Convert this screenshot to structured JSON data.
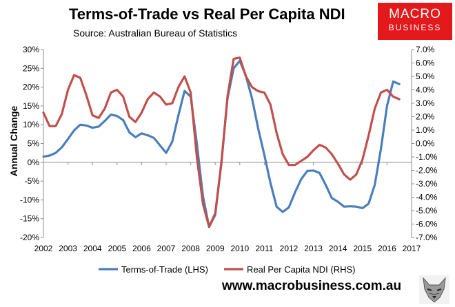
{
  "header": {
    "title": "Terms-of-Trade vs Real Per Capita NDI",
    "source": "Source: Australian Bureau of Statistics"
  },
  "logo": {
    "line1": "MACRO",
    "line2": "BUSINESS",
    "color": "#e3191c"
  },
  "footer": {
    "website": "www.macrobusiness.com.au",
    "wolf_icon": "wolf-head-icon"
  },
  "chart_data": {
    "type": "line",
    "title": "Terms-of-Trade vs Real Per Capita NDI",
    "ylabel": "Annual Change",
    "xlim": [
      2002,
      2017
    ],
    "ylim_left": [
      -20,
      30
    ],
    "ylim_right": [
      -7,
      7
    ],
    "x_ticks": [
      2002,
      2003,
      2004,
      2005,
      2006,
      2007,
      2008,
      2009,
      2010,
      2011,
      2012,
      2013,
      2014,
      2015,
      2016,
      2017
    ],
    "y_ticks_left": [
      "-20%",
      "-15%",
      "-10%",
      "-5%",
      "0%",
      "5%",
      "10%",
      "15%",
      "20%",
      "25%",
      "30%"
    ],
    "y_ticks_right": [
      "-7.0%",
      "-6.0%",
      "-5.0%",
      "-4.0%",
      "-3.0%",
      "-2.0%",
      "-1.0%",
      "0.0%",
      "1.0%",
      "2.0%",
      "3.0%",
      "4.0%",
      "5.0%",
      "6.0%",
      "7.0%"
    ],
    "grid": false,
    "legend_position": "bottom",
    "series": [
      {
        "name": "Terms-of-Trade (LHS)",
        "axis": "left",
        "color": "#4a7ebb",
        "points": [
          [
            2002.0,
            1.5
          ],
          [
            2002.25,
            1.8
          ],
          [
            2002.5,
            2.5
          ],
          [
            2002.75,
            4.0
          ],
          [
            2003.0,
            6.2
          ],
          [
            2003.25,
            8.5
          ],
          [
            2003.5,
            10.0
          ],
          [
            2003.75,
            9.8
          ],
          [
            2004.0,
            9.2
          ],
          [
            2004.25,
            9.5
          ],
          [
            2004.5,
            11.0
          ],
          [
            2004.75,
            12.7
          ],
          [
            2005.0,
            12.3
          ],
          [
            2005.25,
            11.2
          ],
          [
            2005.5,
            8.0
          ],
          [
            2005.75,
            6.7
          ],
          [
            2006.0,
            7.7
          ],
          [
            2006.25,
            7.2
          ],
          [
            2006.5,
            6.5
          ],
          [
            2006.75,
            4.5
          ],
          [
            2007.0,
            2.5
          ],
          [
            2007.25,
            5.5
          ],
          [
            2007.5,
            12.5
          ],
          [
            2007.75,
            19.0
          ],
          [
            2008.0,
            17.5
          ],
          [
            2008.25,
            5.0
          ],
          [
            2008.5,
            -9.0
          ],
          [
            2008.75,
            -17.2
          ],
          [
            2009.0,
            -14.0
          ],
          [
            2009.25,
            0.0
          ],
          [
            2009.5,
            17.0
          ],
          [
            2009.75,
            25.0
          ],
          [
            2010.0,
            27.0
          ],
          [
            2010.25,
            23.0
          ],
          [
            2010.5,
            17.0
          ],
          [
            2010.75,
            9.0
          ],
          [
            2011.0,
            2.0
          ],
          [
            2011.25,
            -5.5
          ],
          [
            2011.5,
            -11.8
          ],
          [
            2011.75,
            -13.2
          ],
          [
            2012.0,
            -12.0
          ],
          [
            2012.25,
            -8.0
          ],
          [
            2012.5,
            -4.5
          ],
          [
            2012.75,
            -2.3
          ],
          [
            2013.0,
            -2.2
          ],
          [
            2013.25,
            -2.8
          ],
          [
            2013.5,
            -6.0
          ],
          [
            2013.75,
            -9.5
          ],
          [
            2014.0,
            -10.5
          ],
          [
            2014.25,
            -11.8
          ],
          [
            2014.5,
            -11.7
          ],
          [
            2014.75,
            -11.8
          ],
          [
            2015.0,
            -12.2
          ],
          [
            2015.25,
            -11.0
          ],
          [
            2015.5,
            -6.0
          ],
          [
            2015.75,
            3.5
          ],
          [
            2016.0,
            15.0
          ],
          [
            2016.25,
            21.5
          ],
          [
            2016.5,
            20.8
          ]
        ]
      },
      {
        "name": "Real Per Capita NDI (RHS)",
        "axis": "right",
        "color": "#c0504d",
        "points": [
          [
            2002.0,
            2.3
          ],
          [
            2002.25,
            1.3
          ],
          [
            2002.5,
            1.3
          ],
          [
            2002.75,
            2.2
          ],
          [
            2003.0,
            4.0
          ],
          [
            2003.25,
            5.1
          ],
          [
            2003.5,
            4.9
          ],
          [
            2003.75,
            3.6
          ],
          [
            2004.0,
            2.1
          ],
          [
            2004.25,
            1.9
          ],
          [
            2004.5,
            2.6
          ],
          [
            2004.75,
            3.8
          ],
          [
            2005.0,
            4.0
          ],
          [
            2005.25,
            3.5
          ],
          [
            2005.5,
            2.0
          ],
          [
            2005.75,
            1.6
          ],
          [
            2006.0,
            2.3
          ],
          [
            2006.25,
            3.3
          ],
          [
            2006.5,
            3.8
          ],
          [
            2006.75,
            3.5
          ],
          [
            2007.0,
            2.9
          ],
          [
            2007.25,
            3.0
          ],
          [
            2007.5,
            4.2
          ],
          [
            2007.75,
            5.0
          ],
          [
            2008.0,
            3.8
          ],
          [
            2008.25,
            -1.0
          ],
          [
            2008.5,
            -4.5
          ],
          [
            2008.75,
            -6.2
          ],
          [
            2009.0,
            -5.2
          ],
          [
            2009.25,
            -1.5
          ],
          [
            2009.5,
            3.5
          ],
          [
            2009.75,
            6.3
          ],
          [
            2010.0,
            6.4
          ],
          [
            2010.25,
            5.0
          ],
          [
            2010.5,
            4.2
          ],
          [
            2010.75,
            3.9
          ],
          [
            2011.0,
            3.8
          ],
          [
            2011.25,
            2.9
          ],
          [
            2011.5,
            0.8
          ],
          [
            2011.75,
            -0.8
          ],
          [
            2012.0,
            -1.6
          ],
          [
            2012.25,
            -1.6
          ],
          [
            2012.5,
            -1.3
          ],
          [
            2012.75,
            -1.0
          ],
          [
            2013.0,
            -0.5
          ],
          [
            2013.25,
            -0.1
          ],
          [
            2013.5,
            -0.3
          ],
          [
            2013.75,
            -0.8
          ],
          [
            2014.0,
            -1.5
          ],
          [
            2014.25,
            -2.3
          ],
          [
            2014.5,
            -2.7
          ],
          [
            2014.75,
            -2.3
          ],
          [
            2015.0,
            -1.2
          ],
          [
            2015.25,
            0.6
          ],
          [
            2015.5,
            2.6
          ],
          [
            2015.75,
            3.8
          ],
          [
            2016.0,
            4.0
          ],
          [
            2016.25,
            3.5
          ],
          [
            2016.5,
            3.3
          ]
        ]
      }
    ]
  }
}
